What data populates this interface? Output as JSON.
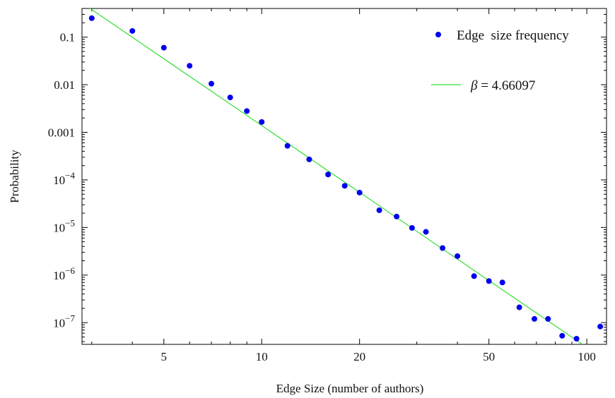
{
  "chart_data": {
    "type": "scatter",
    "title": "",
    "xlabel": "Edge Size (number of authors)",
    "ylabel": "Probability",
    "x_scale": "log",
    "y_scale": "log",
    "xlim": [
      2.8,
      115
    ],
    "ylim": [
      3.5e-08,
      0.4
    ],
    "grid": false,
    "legend_position": "top-right",
    "x_ticks": [
      {
        "value": 5,
        "label": "5"
      },
      {
        "value": 10,
        "label": "10"
      },
      {
        "value": 20,
        "label": "20"
      },
      {
        "value": 50,
        "label": "50"
      },
      {
        "value": 100,
        "label": "100"
      }
    ],
    "y_ticks": [
      {
        "value": 0.1,
        "base": "0.1",
        "exp": ""
      },
      {
        "value": 0.01,
        "base": "0.01",
        "exp": ""
      },
      {
        "value": 0.001,
        "base": "0.001",
        "exp": ""
      },
      {
        "value": 0.0001,
        "base": "10",
        "exp": "−4"
      },
      {
        "value": 1e-05,
        "base": "10",
        "exp": "−5"
      },
      {
        "value": 1e-06,
        "base": "10",
        "exp": "−6"
      },
      {
        "value": 1e-07,
        "base": "10",
        "exp": "−7"
      }
    ],
    "series": [
      {
        "name": "Edge  size frequency",
        "kind": "points",
        "color": "#0000ee",
        "x": [
          3,
          4,
          5,
          6,
          7,
          8,
          9,
          10,
          12,
          14,
          16,
          18,
          20,
          23,
          26,
          29,
          32,
          36,
          40,
          45,
          50,
          55,
          62,
          69,
          76,
          84,
          93,
          110
        ],
        "y": [
          0.25,
          0.135,
          0.06,
          0.025,
          0.0105,
          0.0054,
          0.0028,
          0.00165,
          0.00052,
          0.00027,
          0.00013,
          7.5e-05,
          5.4e-05,
          2.3e-05,
          1.7e-05,
          9.8e-06,
          8.1e-06,
          3.7e-06,
          2.5e-06,
          9.5e-07,
          7.5e-07,
          7e-07,
          2.1e-07,
          1.2e-07,
          1.2e-07,
          5.3e-08,
          4.6e-08,
          8.3e-08
        ]
      },
      {
        "name_prefix": "β",
        "name_suffix": " = 4.66097",
        "kind": "line",
        "color": "#33dd33",
        "x": [
          2.8,
          115
        ],
        "y": [
          0.523,
          1.58e-08
        ]
      }
    ]
  }
}
